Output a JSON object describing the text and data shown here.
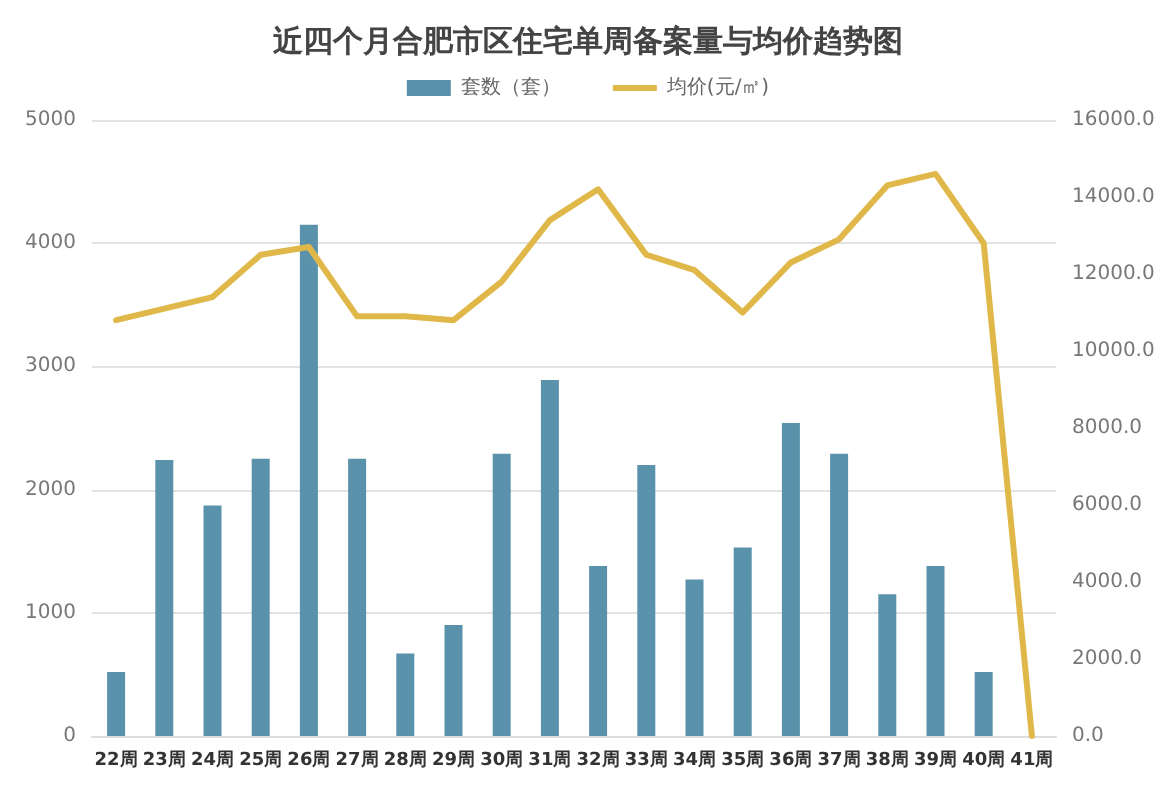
{
  "chart_data": {
    "type": "bar",
    "title": "近四个月合肥市区住宅单周备案量与均价趋势图",
    "categories": [
      "22周",
      "23周",
      "24周",
      "25周",
      "26周",
      "27周",
      "28周",
      "29周",
      "30周",
      "31周",
      "32周",
      "33周",
      "34周",
      "35周",
      "36周",
      "37周",
      "38周",
      "39周",
      "40周",
      "41周"
    ],
    "series": [
      {
        "name": "套数（套）",
        "color": "#5b92ab",
        "values": [
          520,
          2240,
          1870,
          2250,
          4150,
          2250,
          670,
          900,
          2290,
          2890,
          1380,
          2200,
          1270,
          1530,
          2540,
          2290,
          1150,
          1380,
          520,
          0
        ]
      },
      {
        "name": "均价(元/㎡)",
        "type": "line",
        "axis": "y2",
        "color": "#e0b84a",
        "values": [
          10800,
          11100,
          11400,
          12500,
          12700,
          10900,
          10900,
          10800,
          11800,
          13400,
          14200,
          12500,
          12100,
          11000,
          12300,
          12900,
          14300,
          14600,
          12800,
          0
        ]
      }
    ],
    "ylim": [
      0,
      5000
    ],
    "yticks": [
      0,
      1000,
      2000,
      3000,
      4000,
      5000
    ],
    "y2lim": [
      0,
      16000
    ],
    "y2ticks": [
      {
        "value": 0,
        "label": "0.0"
      },
      {
        "value": 2000,
        "label": "2000.0"
      },
      {
        "value": 4000,
        "label": "4000.0"
      },
      {
        "value": 6000,
        "label": "6000.0"
      },
      {
        "value": 8000,
        "label": "8000.0"
      },
      {
        "value": 10000,
        "label": "10000.0"
      },
      {
        "value": 12000,
        "label": "12000.0"
      },
      {
        "value": 14000,
        "label": "14000.0"
      },
      {
        "value": 16000,
        "label": "16000.0"
      }
    ],
    "grid": "y",
    "legend": "top",
    "marker": "none",
    "line_style": "solid"
  }
}
